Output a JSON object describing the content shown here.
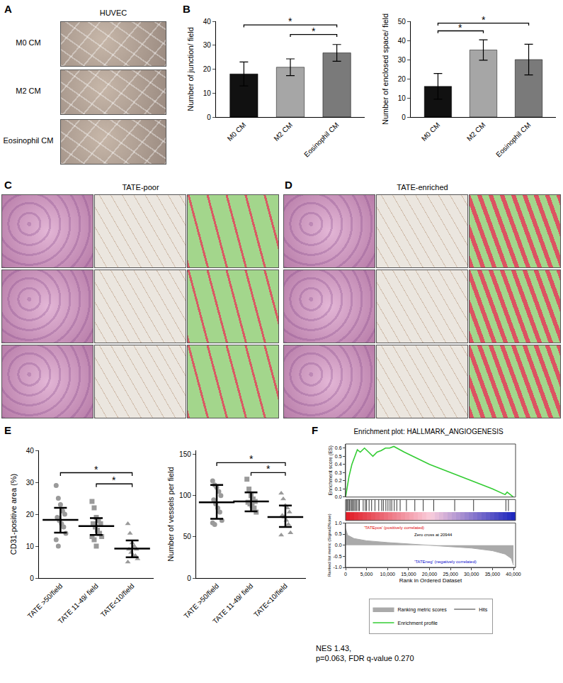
{
  "chart_data": [
    {
      "type": "bar",
      "categories": [
        "M0 CM",
        "M2 CM",
        "Eosinophil CM"
      ],
      "values": [
        18,
        20.8,
        26.8
      ],
      "error": [
        5,
        3.5,
        3.5
      ],
      "colors": [
        "#111111",
        "#a6a6a6",
        "#7a7a7a"
      ],
      "ylabel": "Number of junction/ field",
      "ylim": [
        0,
        40
      ],
      "yticks": [
        0,
        10,
        20,
        30,
        40
      ],
      "significance": [
        {
          "from": "M0 CM",
          "to": "Eosinophil CM",
          "y": 38.5,
          "label": "*"
        },
        {
          "from": "M2 CM",
          "to": "Eosinophil CM",
          "y": 34.5,
          "label": "*"
        }
      ]
    },
    {
      "type": "bar",
      "categories": [
        "M0 CM",
        "M2 CM",
        "Eosinophil CM"
      ],
      "values": [
        16,
        35,
        30
      ],
      "error": [
        6.7,
        5.3,
        8
      ],
      "colors": [
        "#111111",
        "#a6a6a6",
        "#7a7a7a"
      ],
      "ylabel": "Number of enclosed space/ field",
      "ylim": [
        0,
        50
      ],
      "yticks": [
        0,
        10,
        20,
        30,
        40,
        50
      ],
      "significance": [
        {
          "from": "M0 CM",
          "to": "Eosinophil CM",
          "y": 49,
          "label": "*"
        },
        {
          "from": "M0 CM",
          "to": "M2 CM",
          "y": 45,
          "label": "*"
        }
      ]
    },
    {
      "type": "strip",
      "categories": [
        "TATE >50/field",
        "TATE 11-49/ field",
        "TATE<10/field"
      ],
      "color": "#9a9a9a",
      "ylabel": "CD31-positive area (%)",
      "ylim": [
        0,
        40
      ],
      "yticks": [
        0,
        10,
        20,
        30,
        40
      ],
      "groups": [
        {
          "category": "TATE >50/field",
          "marker": "circle",
          "points": [
            29,
            25,
            23,
            21,
            20,
            19,
            18,
            17,
            16,
            14,
            12,
            10
          ],
          "mean": 18.2,
          "error_minus": 4,
          "error_plus": 3.8
        },
        {
          "category": "TATE 11-49/ field",
          "marker": "square",
          "points": [
            24,
            22,
            19,
            18,
            17,
            17,
            16,
            15,
            14,
            13,
            13,
            12,
            10
          ],
          "mean": 16.3,
          "error_minus": 2.8,
          "error_plus": 2.5
        },
        {
          "category": "TATE<10/field",
          "marker": "triangle-up",
          "points": [
            17,
            14,
            11,
            10,
            9,
            9,
            8,
            7,
            7,
            6,
            5
          ],
          "mean": 9.2,
          "error_minus": 2.7,
          "error_plus": 2.6
        }
      ],
      "significance": [
        {
          "from": "TATE >50/field",
          "to": "TATE<10/field",
          "y": 33,
          "label": "*"
        },
        {
          "from": "TATE 11-49/ field",
          "to": "TATE<10/field",
          "y": 29.5,
          "label": "*"
        }
      ]
    },
    {
      "type": "strip",
      "categories": [
        "TATE >50/field",
        "TATE 11-49/ field",
        "TATE<10/field"
      ],
      "color": "#9a9a9a",
      "ylabel": "Number of vessels per field",
      "ylim": [
        0,
        155
      ],
      "yticks": [
        0,
        50,
        100,
        150
      ],
      "groups": [
        {
          "category": "TATE >50/field",
          "marker": "circle",
          "points": [
            118,
            113,
            110,
            105,
            100,
            95,
            90,
            85,
            80,
            70,
            67,
            65
          ],
          "mean": 92,
          "error_minus": 20,
          "error_plus": 21
        },
        {
          "category": "TATE 11-49/ field",
          "marker": "square",
          "points": [
            120,
            108,
            100,
            96,
            93,
            92,
            90,
            88,
            85,
            80
          ],
          "mean": 93,
          "error_minus": 12,
          "error_plus": 11
        },
        {
          "category": "TATE<10/field",
          "marker": "triangle-up",
          "points": [
            103,
            96,
            88,
            85,
            80,
            76,
            74,
            70,
            65,
            55,
            52
          ],
          "mean": 74,
          "error_minus": 12,
          "error_plus": 14
        }
      ],
      "significance": [
        {
          "from": "TATE >50/field",
          "to": "TATE<10/field",
          "y": 140,
          "label": "*"
        },
        {
          "from": "TATE 11-49/ field",
          "to": "TATE<10/field",
          "y": 128,
          "label": "*"
        }
      ]
    },
    {
      "type": "gsea",
      "title": "Enrichment plot: HALLMARK_ANGIOGENESIS",
      "xlabel": "Rank in Ordered Dataset",
      "xlim": [
        0,
        40500
      ],
      "xticks": [
        0,
        {
          "value": 5000,
          "label": "5,000"
        },
        {
          "value": 10000,
          "label": "10,000"
        },
        {
          "value": 15000,
          "label": "15,000"
        },
        {
          "value": 20000,
          "label": "20,000"
        },
        {
          "value": 25000,
          "label": "25,000"
        },
        {
          "value": 30000,
          "label": "30,000"
        },
        {
          "value": 35000,
          "label": "35,000"
        },
        {
          "value": 40000,
          "label": "40,000"
        }
      ],
      "legend": "bottom",
      "es": {
        "name": "Enrichment profile",
        "color": "#33cc33",
        "x": [
          0,
          300,
          800,
          1500,
          2200,
          2800,
          3500,
          4500,
          5500,
          6500,
          7500,
          8500,
          9500,
          10500,
          11500,
          12500,
          14000,
          16000,
          20000,
          25000,
          30000,
          35000,
          38000,
          38500,
          40000
        ],
        "values": [
          0,
          0.1,
          0.25,
          0.4,
          0.5,
          0.58,
          0.55,
          0.6,
          0.55,
          0.5,
          0.55,
          0.57,
          0.6,
          0.6,
          0.62,
          0.59,
          0.55,
          0.5,
          0.4,
          0.3,
          0.2,
          0.1,
          0.03,
          0.06,
          0
        ],
        "ylabel": "Enrichment score (ES)",
        "ylim": [
          0,
          0.65
        ],
        "yticks": [
          {
            "value": 0,
            "label": "0.0"
          },
          0.1,
          0.2,
          0.3,
          0.4,
          0.5,
          0.6
        ]
      },
      "hits": {
        "name": "Hits",
        "color": "#000000",
        "x": [
          200,
          400,
          700,
          900,
          1200,
          1500,
          1700,
          2000,
          2300,
          2600,
          3000,
          3300,
          4200,
          4700,
          5000,
          5600,
          6200,
          7000,
          7900,
          8600,
          9000,
          9600,
          10100,
          10600,
          11000,
          11600,
          12200,
          13000,
          14500,
          16500,
          18500,
          21000,
          26000,
          30500,
          38200,
          38800
        ]
      },
      "metric": {
        "name": "Ranking metric scores",
        "color": "#aaaaaa",
        "x": [
          0,
          500,
          2000,
          5000,
          10000,
          15000,
          20944,
          25000,
          30000,
          35000,
          38000,
          39500,
          40000
        ],
        "values": [
          0.75,
          0.45,
          0.3,
          0.2,
          0.12,
          0.06,
          0,
          -0.06,
          -0.13,
          -0.25,
          -0.4,
          -0.6,
          -0.9
        ],
        "ylabel": "Ranked list metric (Signal2Noise)",
        "ylim": [
          -1,
          1
        ],
        "yticks": [
          {
            "value": 1,
            "label": "1.0"
          },
          0.5,
          {
            "value": 0,
            "label": "0.0"
          },
          -0.5,
          {
            "value": -1,
            "label": "-1.0"
          }
        ]
      },
      "pos_label": {
        "text": "'TATEpos' (positively correlated)",
        "color": "#e00000"
      },
      "zero_cross": {
        "text": "Zero cross at 20944",
        "x": 20944
      },
      "neg_label": {
        "text": "'TATEneg' (negatively correlated)",
        "color": "#1010cc"
      }
    }
  ],
  "figure": {
    "letters": [
      "A",
      "B",
      "C",
      "D",
      "E",
      "F"
    ],
    "panel_a": {
      "title": "HUVEC",
      "rows": [
        "M0 CM",
        "M2 CM",
        "Eosinophil CM"
      ]
    },
    "panel_c_title": "TATE-poor",
    "panel_d_title": "TATE-enriched",
    "notes": [
      "NES 1.43,",
      "p=0.063, FDR q-value 0.270"
    ]
  }
}
